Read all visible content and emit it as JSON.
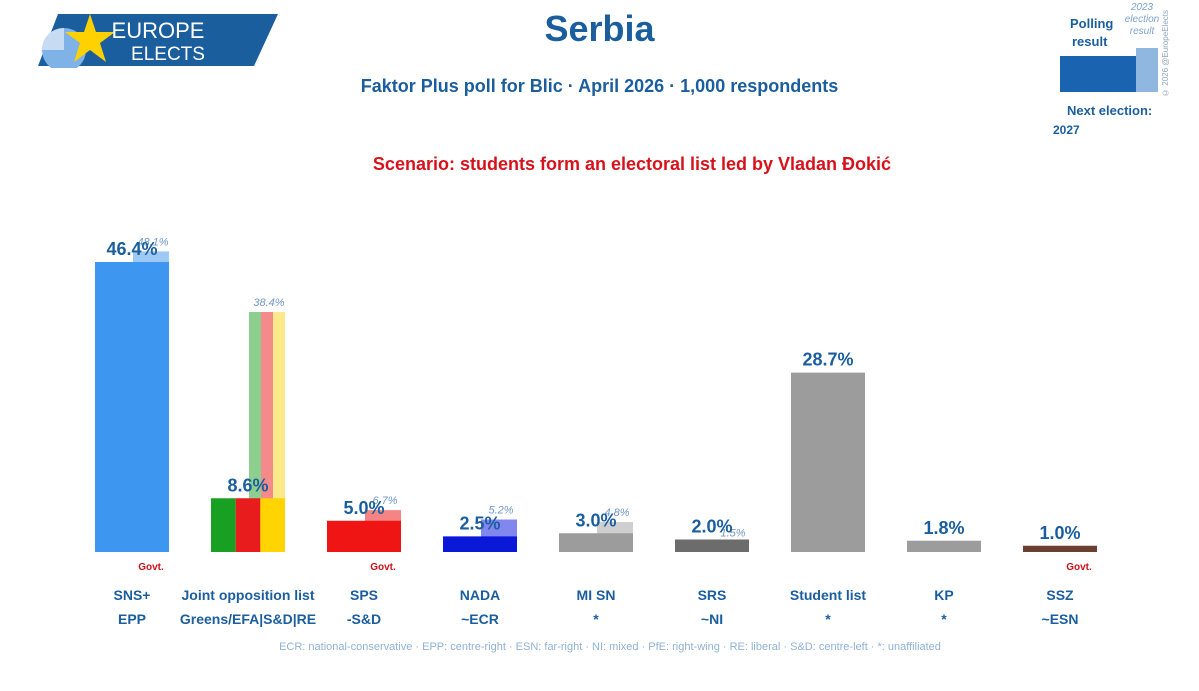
{
  "header": {
    "logo_line1": "EUROPE",
    "logo_line2": "ELECTS",
    "title": "Serbia",
    "subtitle": "Faktor Plus poll for Blic · April 2026 · 1,000 respondents",
    "scenario": "Scenario: students form an electoral list led by Vladan Đokić"
  },
  "legend": {
    "polling_line1": "Polling",
    "polling_line2": "result",
    "prev_line1": "2023",
    "prev_line2": "election",
    "prev_line3": "result",
    "next_election_label": "Next election:",
    "next_election_year": "2027",
    "copyright": "© 2026 @EuropeElects"
  },
  "colors": {
    "brand_blue": "#1b5e9e",
    "scenario_red": "#d8121b",
    "legend_bar": "#1a63b0",
    "legend_prev_bar": "#8fb7e0"
  },
  "chart_data": {
    "type": "bar",
    "ylim": [
      0,
      50
    ],
    "govt_label": "Govt.",
    "parties": [
      {
        "name": "SNS+",
        "group": "EPP",
        "value": 46.4,
        "value_label": "46.4%",
        "prev": 48.1,
        "prev_label": "48.1%",
        "govt": true,
        "colors": [
          "#3d97f0"
        ],
        "prev_colors": [
          "#9dc9f4"
        ]
      },
      {
        "name": "Joint opposition list",
        "group": "Greens/EFA|S&D|RE",
        "value": 8.6,
        "value_label": "8.6%",
        "prev": 38.4,
        "prev_label": "38.4%",
        "govt": false,
        "colors": [
          "#18a023",
          "#e81c1c",
          "#ffd400"
        ],
        "prev_colors": [
          "#8dcf8f",
          "#f58a8a",
          "#fde98a"
        ]
      },
      {
        "name": "SPS",
        "group": "-S&D",
        "value": 5.0,
        "value_label": "5.0%",
        "prev": 6.7,
        "prev_label": "6.7%",
        "govt": true,
        "colors": [
          "#f01515"
        ],
        "prev_colors": [
          "#f58585"
        ]
      },
      {
        "name": "NADA",
        "group": "~ECR",
        "value": 2.5,
        "value_label": "2.5%",
        "prev": 5.2,
        "prev_label": "5.2%",
        "govt": false,
        "colors": [
          "#0a19d8"
        ],
        "prev_colors": [
          "#8287f0"
        ]
      },
      {
        "name": "MI SN",
        "group": "*",
        "value": 3.0,
        "value_label": "3.0%",
        "prev": 4.8,
        "prev_label": "4.8%",
        "govt": false,
        "colors": [
          "#9c9c9c"
        ],
        "prev_colors": [
          "#cfcfcf"
        ]
      },
      {
        "name": "SRS",
        "group": "~NI",
        "value": 2.0,
        "value_label": "2.0%",
        "prev": 1.5,
        "prev_label": "1.5%",
        "govt": false,
        "colors": [
          "#6c6c6c"
        ],
        "prev_colors": [
          "#b6b6b6"
        ]
      },
      {
        "name": "Student list",
        "group": "*",
        "value": 28.7,
        "value_label": "28.7%",
        "prev": null,
        "prev_label": "",
        "govt": false,
        "colors": [
          "#9c9c9c"
        ],
        "prev_colors": []
      },
      {
        "name": "KP",
        "group": "*",
        "value": 1.8,
        "value_label": "1.8%",
        "prev": null,
        "prev_label": "",
        "govt": false,
        "colors": [
          "#9c9c9c"
        ],
        "prev_colors": []
      },
      {
        "name": "SSZ",
        "group": "~ESN",
        "value": 1.0,
        "value_label": "1.0%",
        "prev": null,
        "prev_label": "",
        "govt": true,
        "colors": [
          "#6b4030"
        ],
        "prev_colors": []
      }
    ]
  },
  "footnote": "ECR: national-conservative · EPP: centre-right · ESN: far-right · NI: mixed · PfE: right-wing · RE: liberal · S&D: centre-left · *: unaffiliated"
}
